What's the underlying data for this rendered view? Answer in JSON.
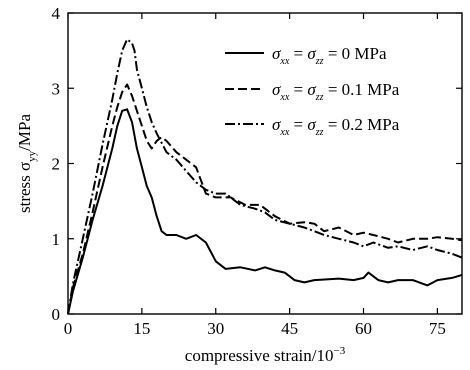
{
  "chart_data": {
    "type": "line",
    "xlabel": "compressive strain/10",
    "xlabel_exponent": "−3",
    "ylabel": "stress σ",
    "ylabel_subscript": "yy",
    "ylabel_unit": "/MPa",
    "xlim": [
      0,
      80
    ],
    "ylim": [
      0,
      4
    ],
    "x_ticks": [
      0,
      15,
      30,
      45,
      60,
      75
    ],
    "y_ticks": [
      0,
      1,
      2,
      3,
      4
    ],
    "grid": false,
    "legend_position": "top-right",
    "series": [
      {
        "name": "σxx = σzz = 0 MPa",
        "name_sigma": "σ",
        "name_sub1": "xx",
        "name_eq": " = ",
        "name_sub2": "zz",
        "name_value": " = 0 MPa",
        "line_style": "solid",
        "points": [
          [
            0,
            0
          ],
          [
            1,
            0.3
          ],
          [
            3,
            0.75
          ],
          [
            5,
            1.25
          ],
          [
            7,
            1.7
          ],
          [
            9,
            2.2
          ],
          [
            10,
            2.5
          ],
          [
            11,
            2.7
          ],
          [
            12,
            2.72
          ],
          [
            13,
            2.55
          ],
          [
            14,
            2.2
          ],
          [
            15,
            1.95
          ],
          [
            16,
            1.7
          ],
          [
            17,
            1.55
          ],
          [
            18,
            1.3
          ],
          [
            19,
            1.1
          ],
          [
            20,
            1.05
          ],
          [
            22,
            1.05
          ],
          [
            24,
            1.0
          ],
          [
            26,
            1.05
          ],
          [
            28,
            0.95
          ],
          [
            30,
            0.7
          ],
          [
            32,
            0.6
          ],
          [
            35,
            0.62
          ],
          [
            38,
            0.58
          ],
          [
            40,
            0.62
          ],
          [
            42,
            0.58
          ],
          [
            44,
            0.55
          ],
          [
            46,
            0.45
          ],
          [
            48,
            0.42
          ],
          [
            50,
            0.45
          ],
          [
            55,
            0.47
          ],
          [
            58,
            0.45
          ],
          [
            60,
            0.48
          ],
          [
            61,
            0.55
          ],
          [
            63,
            0.45
          ],
          [
            65,
            0.42
          ],
          [
            67,
            0.45
          ],
          [
            70,
            0.45
          ],
          [
            73,
            0.38
          ],
          [
            75,
            0.45
          ],
          [
            78,
            0.48
          ],
          [
            80,
            0.52
          ]
        ]
      },
      {
        "name": "σxx = σzz = 0.1 MPa",
        "name_sigma": "σ",
        "name_sub1": "xx",
        "name_eq": " = ",
        "name_sub2": "zz",
        "name_value": " = 0.1 MPa",
        "line_style": "dashed",
        "points": [
          [
            0,
            0
          ],
          [
            1,
            0.35
          ],
          [
            3,
            0.8
          ],
          [
            5,
            1.35
          ],
          [
            7,
            1.95
          ],
          [
            9,
            2.5
          ],
          [
            10,
            2.75
          ],
          [
            11,
            2.95
          ],
          [
            12,
            3.05
          ],
          [
            13,
            2.9
          ],
          [
            14,
            2.7
          ],
          [
            15,
            2.5
          ],
          [
            16,
            2.3
          ],
          [
            17,
            2.2
          ],
          [
            18,
            2.3
          ],
          [
            19,
            2.35
          ],
          [
            20,
            2.3
          ],
          [
            22,
            2.15
          ],
          [
            24,
            2.05
          ],
          [
            26,
            1.95
          ],
          [
            28,
            1.6
          ],
          [
            30,
            1.55
          ],
          [
            33,
            1.55
          ],
          [
            36,
            1.45
          ],
          [
            39,
            1.45
          ],
          [
            42,
            1.3
          ],
          [
            45,
            1.2
          ],
          [
            48,
            1.22
          ],
          [
            50,
            1.2
          ],
          [
            52,
            1.1
          ],
          [
            55,
            1.15
          ],
          [
            58,
            1.05
          ],
          [
            60,
            1.08
          ],
          [
            62,
            1.05
          ],
          [
            65,
            1.0
          ],
          [
            67,
            0.95
          ],
          [
            70,
            1.0
          ],
          [
            73,
            1.0
          ],
          [
            75,
            1.02
          ],
          [
            78,
            1.0
          ],
          [
            80,
            0.98
          ]
        ]
      },
      {
        "name": "σxx = σzz = 0.2 MPa",
        "name_sigma": "σ",
        "name_sub1": "xx",
        "name_eq": " = ",
        "name_sub2": "zz",
        "name_value": " = 0.2 MPa",
        "line_style": "dashdot",
        "points": [
          [
            0,
            0
          ],
          [
            1,
            0.4
          ],
          [
            3,
            1.0
          ],
          [
            5,
            1.6
          ],
          [
            7,
            2.25
          ],
          [
            9,
            2.85
          ],
          [
            10,
            3.2
          ],
          [
            11,
            3.5
          ],
          [
            12,
            3.65
          ],
          [
            13,
            3.6
          ],
          [
            13.5,
            3.5
          ],
          [
            14,
            3.25
          ],
          [
            15,
            3.0
          ],
          [
            16,
            2.75
          ],
          [
            17,
            2.55
          ],
          [
            18,
            2.4
          ],
          [
            20,
            2.15
          ],
          [
            22,
            2.05
          ],
          [
            24,
            1.9
          ],
          [
            26,
            1.75
          ],
          [
            28,
            1.65
          ],
          [
            30,
            1.6
          ],
          [
            32,
            1.6
          ],
          [
            35,
            1.45
          ],
          [
            38,
            1.4
          ],
          [
            40,
            1.35
          ],
          [
            42,
            1.25
          ],
          [
            45,
            1.2
          ],
          [
            48,
            1.15
          ],
          [
            50,
            1.1
          ],
          [
            52,
            1.05
          ],
          [
            55,
            1.0
          ],
          [
            58,
            0.95
          ],
          [
            60,
            0.9
          ],
          [
            62,
            0.95
          ],
          [
            65,
            0.88
          ],
          [
            67,
            0.9
          ],
          [
            70,
            0.85
          ],
          [
            73,
            0.9
          ],
          [
            75,
            0.85
          ],
          [
            78,
            0.8
          ],
          [
            80,
            0.75
          ]
        ]
      }
    ]
  }
}
